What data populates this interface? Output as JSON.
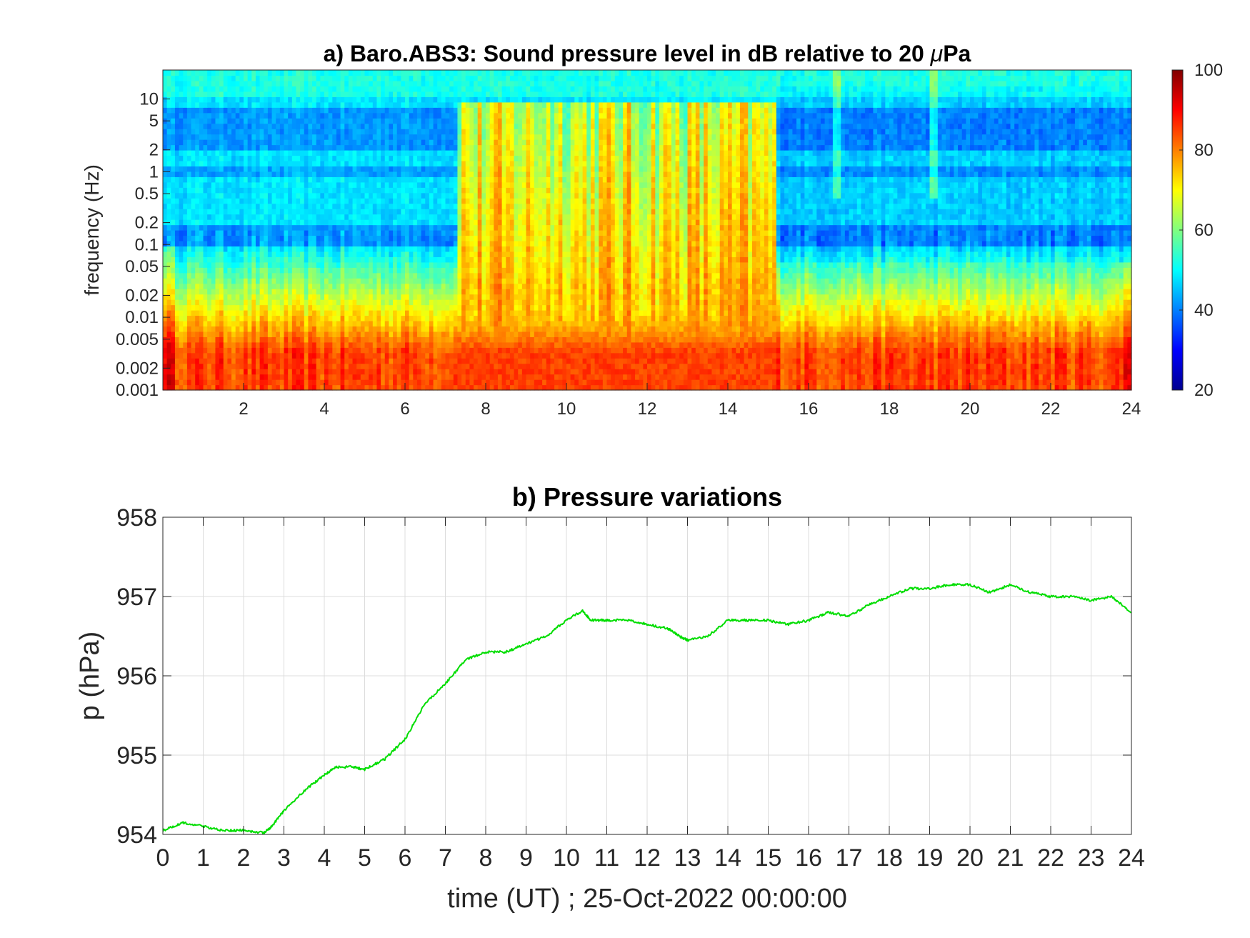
{
  "chart_data": [
    {
      "type": "heatmap",
      "title": "a) Baro.ABS3: Sound pressure level in dB relative to 20 μPa",
      "title_main": "a) Baro.ABS3: Sound pressure level in dB relative to 20 ",
      "title_mu": "μ",
      "title_end": "Pa",
      "ylabel": "frequency (Hz)",
      "xlim": [
        0,
        24
      ],
      "ylim": [
        0.001,
        25
      ],
      "yscale": "log",
      "x_ticks": [
        "2",
        "4",
        "6",
        "8",
        "10",
        "12",
        "14",
        "16",
        "18",
        "20",
        "22",
        "24"
      ],
      "y_ticks": [
        "0.001",
        "0.002",
        "0.005",
        "0.01",
        "0.02",
        "0.05",
        "0.1",
        "0.2",
        "0.5",
        "1",
        "2",
        "5",
        "10"
      ],
      "colorbar": {
        "range": [
          20,
          100
        ],
        "ticks": [
          "20",
          "40",
          "60",
          "80",
          "100"
        ],
        "colormap": "jet"
      },
      "features": {
        "low_freq_level_db": 85,
        "high_freq_level_db": 48,
        "active_period_hours": [
          7.3,
          15.2
        ],
        "active_period_level_db": 75,
        "spikes_hours": [
          16.7,
          19.1
        ]
      },
      "grid": false
    },
    {
      "type": "line",
      "title": "b) Pressure variations",
      "xlabel": "time (UT) ; 25-Oct-2022 00:00:00",
      "ylabel": "p (hPa)",
      "xlim": [
        0,
        24
      ],
      "ylim": [
        954,
        958
      ],
      "x_ticks": [
        "0",
        "1",
        "2",
        "3",
        "4",
        "5",
        "6",
        "7",
        "8",
        "9",
        "10",
        "11",
        "12",
        "13",
        "14",
        "15",
        "16",
        "17",
        "18",
        "19",
        "20",
        "21",
        "22",
        "23",
        "24"
      ],
      "y_ticks": [
        "954",
        "955",
        "956",
        "957",
        "958"
      ],
      "grid": true,
      "series": [
        {
          "color": "#00dd00",
          "x": [
            0,
            0.5,
            1,
            1.5,
            2,
            2.5,
            2.7,
            3,
            3.5,
            4,
            4.3,
            4.7,
            5,
            5.5,
            6,
            6.5,
            7,
            7.5,
            8,
            8.5,
            9,
            9.5,
            10,
            10.4,
            10.6,
            11,
            11.5,
            12,
            12.5,
            12.8,
            13,
            13.5,
            14,
            14.5,
            15,
            15.5,
            16,
            16.5,
            17,
            17.5,
            18,
            18.5,
            19,
            19.5,
            20,
            20.5,
            21,
            21.5,
            22,
            22.5,
            23,
            23.5,
            24
          ],
          "y": [
            954.05,
            954.15,
            954.1,
            954.05,
            954.05,
            954.02,
            954.1,
            954.3,
            954.55,
            954.75,
            954.85,
            954.85,
            954.82,
            954.95,
            955.2,
            955.65,
            955.9,
            956.2,
            956.3,
            956.3,
            956.4,
            956.5,
            956.7,
            956.82,
            956.7,
            956.7,
            956.7,
            956.65,
            956.6,
            956.5,
            956.45,
            956.5,
            956.7,
            956.7,
            956.7,
            956.65,
            956.7,
            956.8,
            956.75,
            956.9,
            957.0,
            957.1,
            957.1,
            957.15,
            957.15,
            957.05,
            957.15,
            957.05,
            957.0,
            957.0,
            956.95,
            957.0,
            956.8
          ]
        }
      ]
    }
  ]
}
